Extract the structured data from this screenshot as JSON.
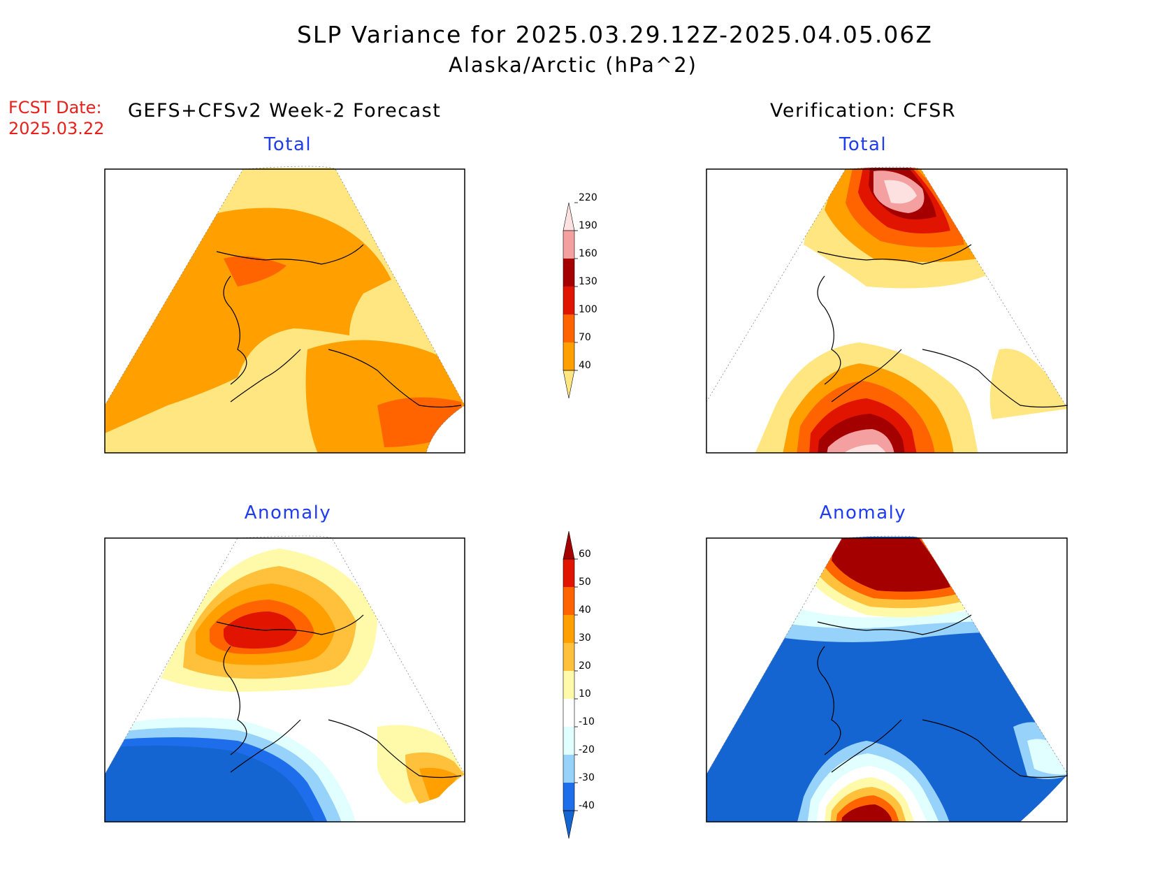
{
  "header": {
    "title": "SLP Variance for 2025.03.29.12Z-2025.04.05.06Z",
    "subtitle": "Alaska/Arctic (hPa^2)",
    "fcst_label": "FCST Date:",
    "fcst_date": "2025.03.22",
    "left_heading": "GEFS+CFSv2 Week-2 Forecast",
    "right_heading": "Verification: CFSR"
  },
  "panels": [
    {
      "id": "fcst-total",
      "title": "Total"
    },
    {
      "id": "verif-total",
      "title": "Total"
    },
    {
      "id": "fcst-anomaly",
      "title": "Anomaly"
    },
    {
      "id": "verif-anomaly",
      "title": "Anomaly"
    }
  ],
  "colorbars": {
    "total": {
      "levels": [
        "40",
        "70",
        "100",
        "130",
        "160",
        "190",
        "220"
      ],
      "colors": [
        "#ffe680",
        "#ffa000",
        "#ff6400",
        "#e11400",
        "#a50000",
        "#f5a0a0",
        "#fde0e0"
      ]
    },
    "anomaly": {
      "levels": [
        "-40",
        "-30",
        "-20",
        "-10",
        "10",
        "20",
        "30",
        "40",
        "50",
        "60"
      ],
      "colors": [
        "#1464d2",
        "#1e6eeb",
        "#96d2fa",
        "#e1ffff",
        "#ffffff",
        "#fffaaa",
        "#ffc03c",
        "#ffa000",
        "#ff6400",
        "#e11400",
        "#a50000"
      ]
    }
  }
}
